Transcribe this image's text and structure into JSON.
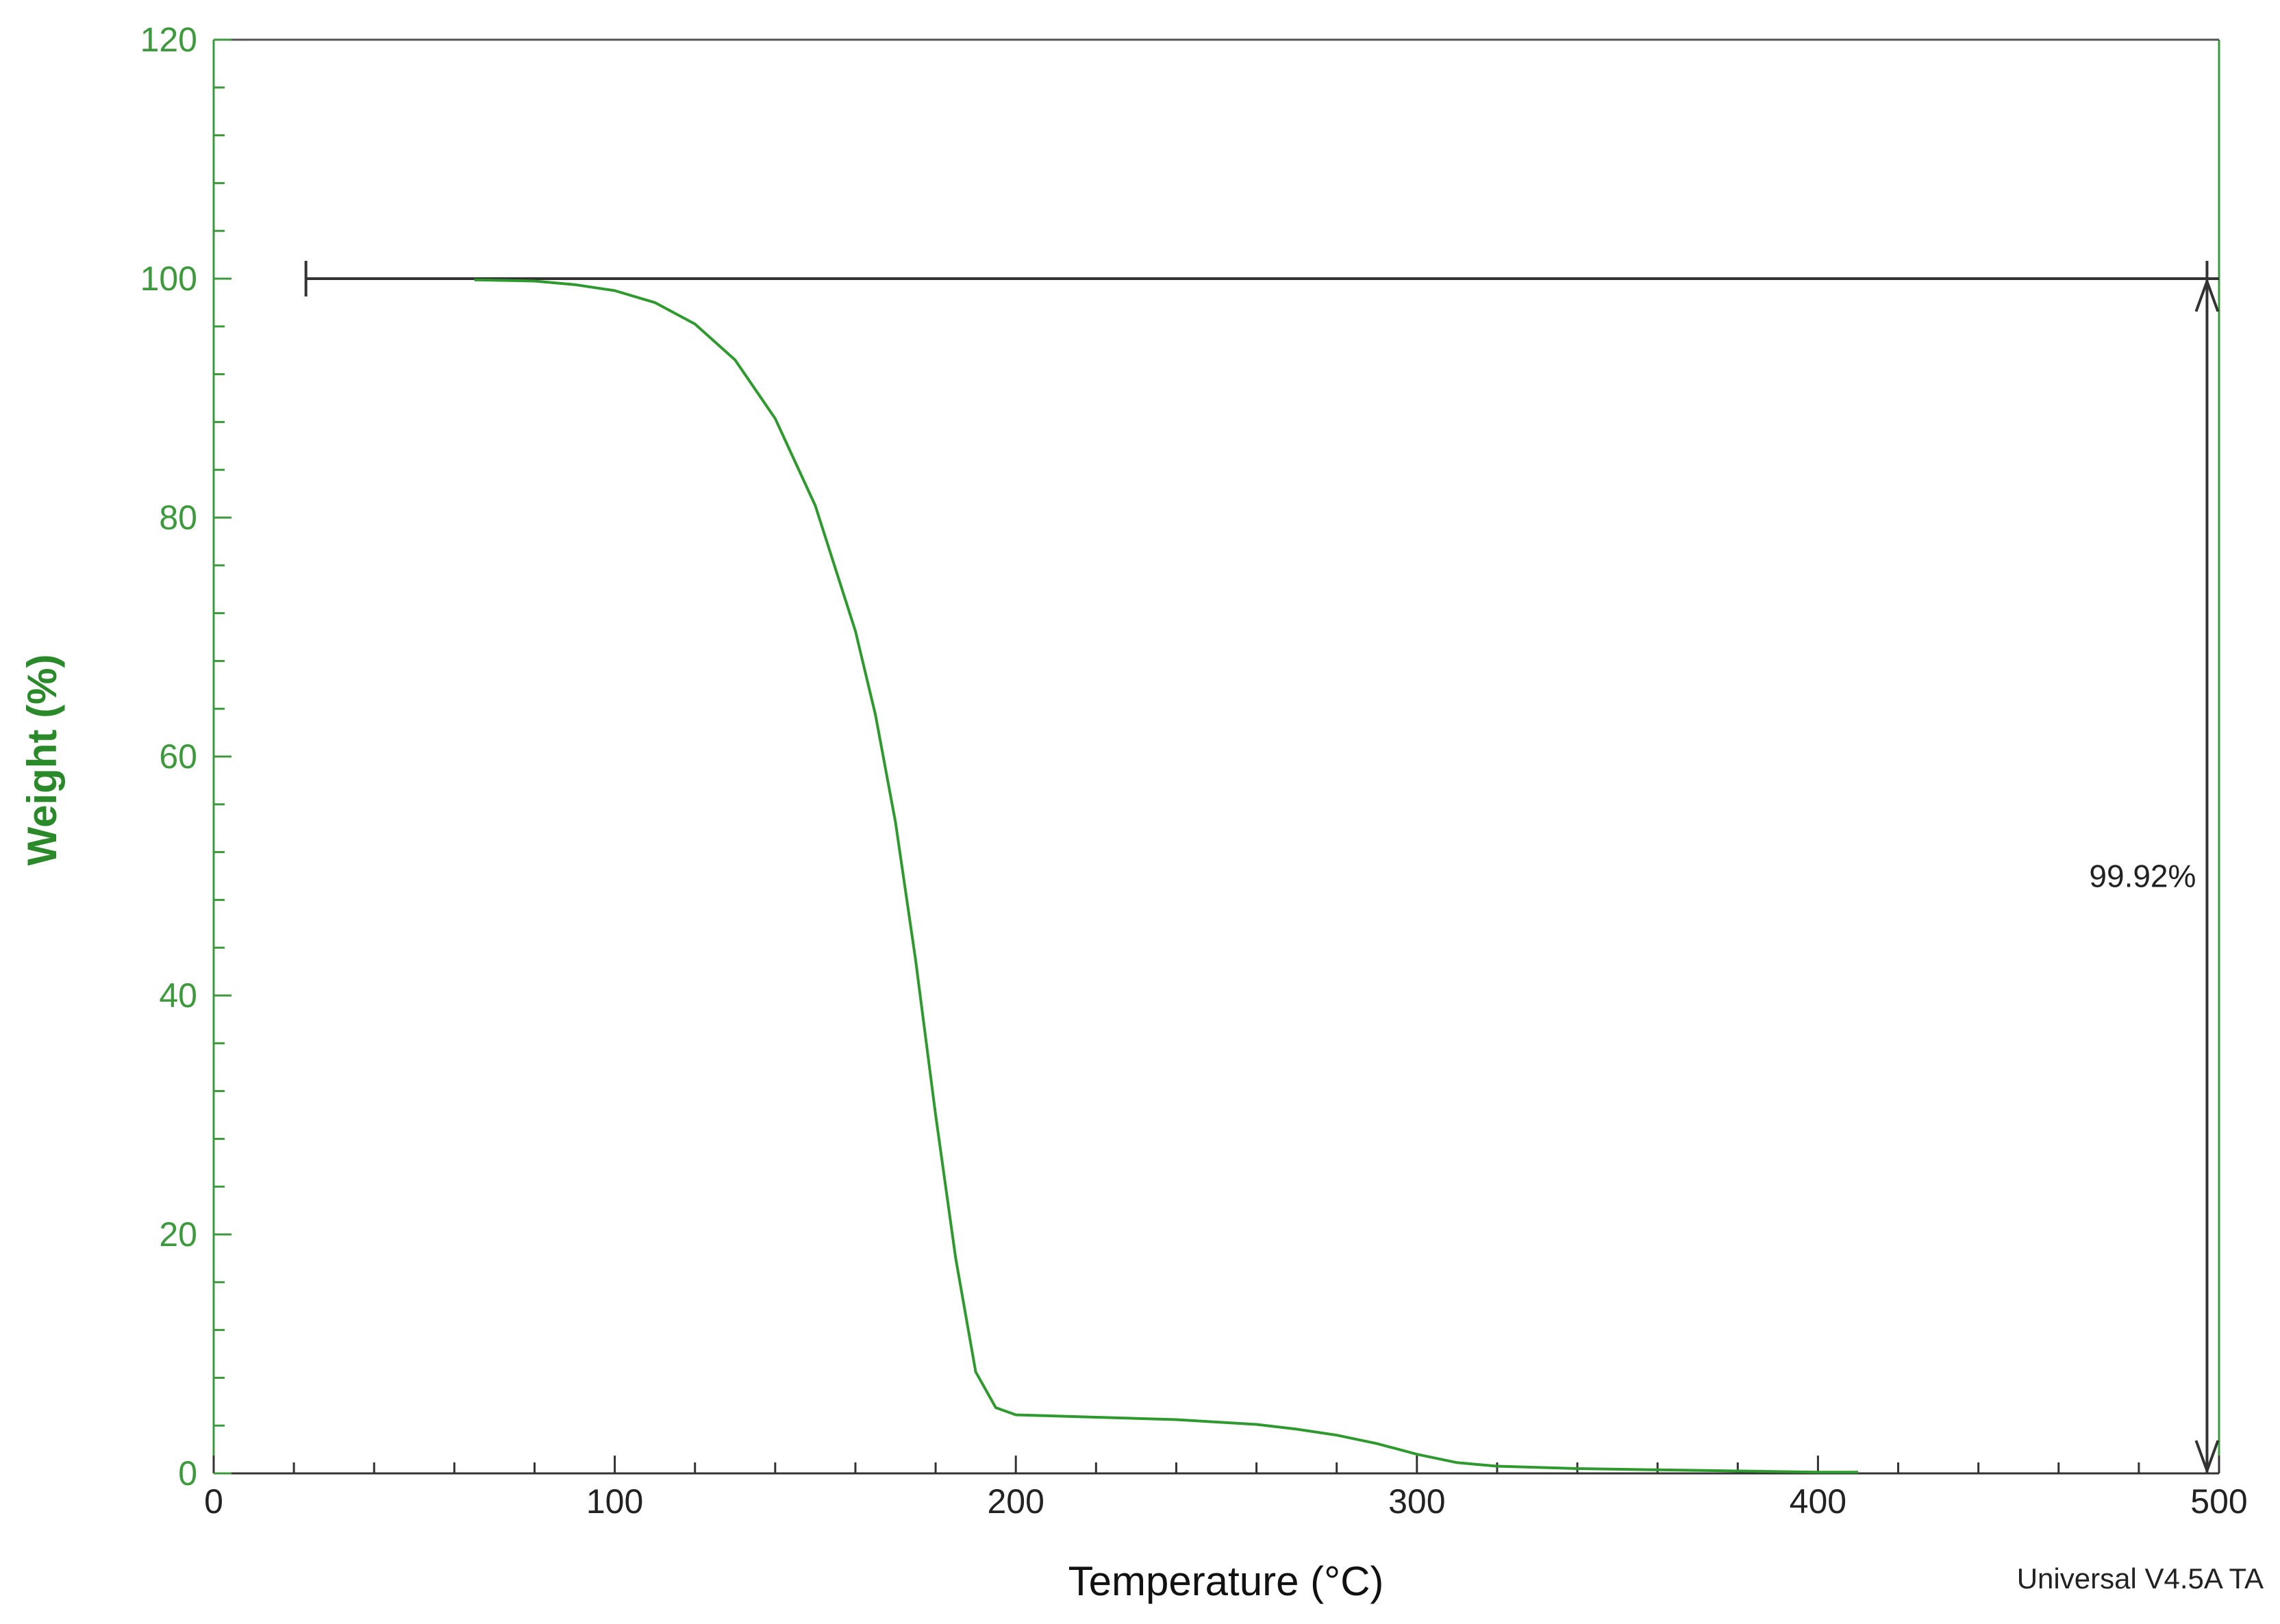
{
  "chart_data": {
    "type": "line",
    "xlabel": "Temperature (°C)",
    "ylabel": "Weight (%)",
    "xlim": [
      0,
      500
    ],
    "ylim": [
      0,
      120
    ],
    "x_ticks": [
      0,
      100,
      200,
      300,
      400,
      500
    ],
    "y_ticks": [
      0,
      20,
      40,
      60,
      80,
      100,
      120
    ],
    "grid": false,
    "colors": {
      "series": "#2e9a2e",
      "y_axis": "#3c9a3c",
      "annotation": "#333333"
    },
    "series": [
      {
        "x": [
          65,
          80,
          90,
          100,
          110,
          120,
          130,
          140,
          150,
          160,
          165,
          170,
          175,
          180,
          185,
          190,
          195,
          200,
          210,
          220,
          230,
          240,
          250,
          260,
          270,
          280,
          290,
          300,
          310,
          320,
          330,
          340,
          360,
          380,
          400,
          410
        ],
        "y": [
          99.9,
          99.8,
          99.5,
          99.0,
          98.0,
          96.2,
          93.2,
          88.3,
          81.0,
          70.5,
          63.5,
          54.5,
          43.0,
          30.0,
          18.0,
          8.5,
          5.5,
          4.9,
          4.8,
          4.7,
          4.6,
          4.5,
          4.3,
          4.1,
          3.7,
          3.2,
          2.5,
          1.6,
          0.9,
          0.6,
          0.5,
          0.4,
          0.3,
          0.2,
          0.1,
          0.1
        ]
      }
    ],
    "annotation": {
      "label": "99.92%",
      "baseline_y": 100,
      "bracket_x_start": 23,
      "arrow_x": 497,
      "arrow_from_y": 100,
      "arrow_to_y": 0
    },
    "footer": "Universal V4.5A TA"
  }
}
